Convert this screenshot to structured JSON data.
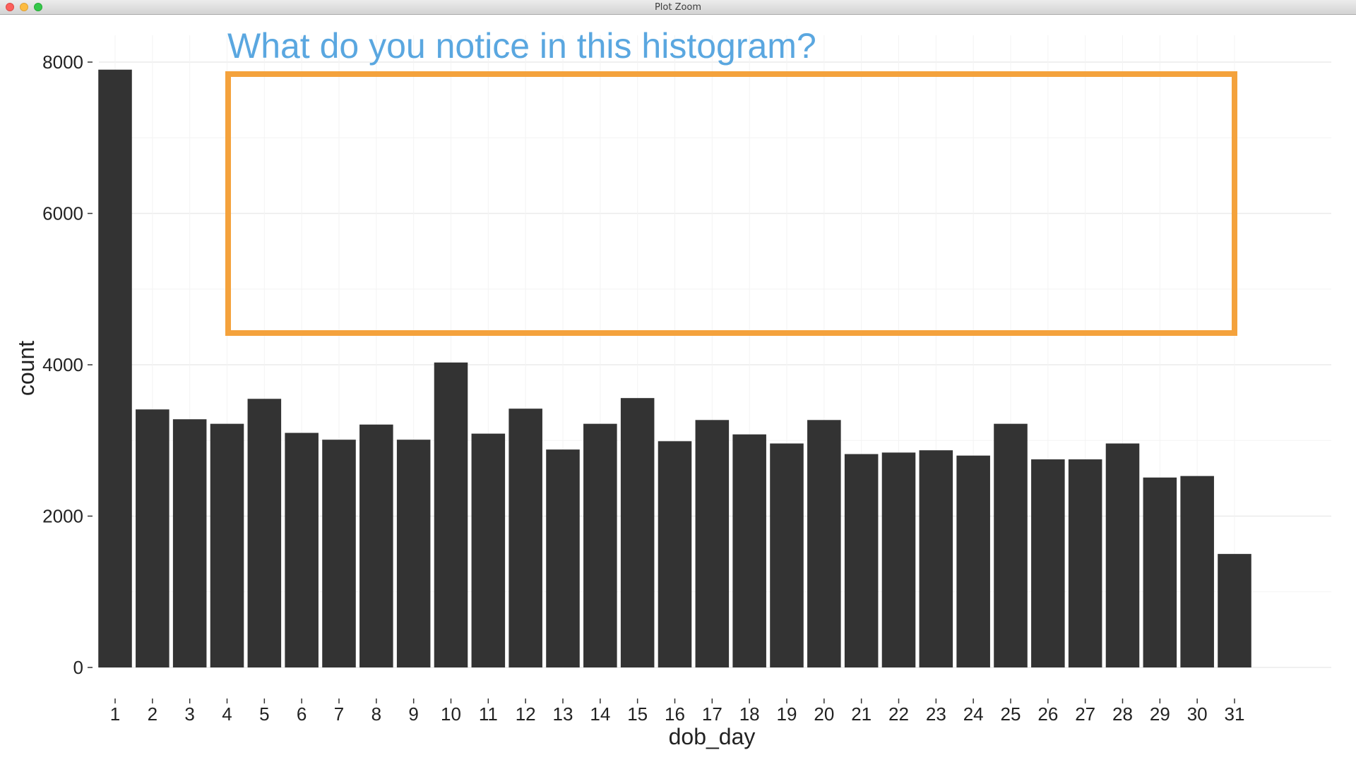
{
  "window": {
    "title": "Plot Zoom"
  },
  "colors": {
    "bar": "#333333",
    "annotation_text": "#5aa7e0",
    "annotation_box": "#f4a23c",
    "grid": "#ebebeb"
  },
  "annotation": {
    "text": "What do you notice in this histogram?"
  },
  "chart_data": {
    "type": "bar",
    "title": "",
    "xlabel": "dob_day",
    "ylabel": "count",
    "ylim": [
      0,
      8000
    ],
    "yticks": [
      0,
      2000,
      4000,
      6000,
      8000
    ],
    "grid": true,
    "categories": [
      "1",
      "2",
      "3",
      "4",
      "5",
      "6",
      "7",
      "8",
      "9",
      "10",
      "11",
      "12",
      "13",
      "14",
      "15",
      "16",
      "17",
      "18",
      "19",
      "20",
      "21",
      "22",
      "23",
      "24",
      "25",
      "26",
      "27",
      "28",
      "29",
      "30",
      "31"
    ],
    "values": [
      7900,
      3410,
      3280,
      3220,
      3550,
      3100,
      3010,
      3210,
      3010,
      4030,
      3090,
      3420,
      2880,
      3220,
      3560,
      2990,
      3270,
      3080,
      2960,
      3270,
      2820,
      2840,
      2870,
      2800,
      3220,
      2750,
      2750,
      2960,
      2510,
      2530,
      1500
    ]
  }
}
